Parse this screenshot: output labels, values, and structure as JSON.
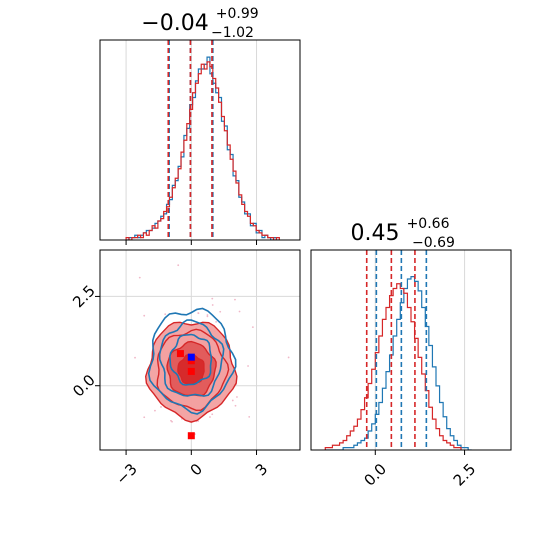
{
  "chart_data": {
    "type": "corner",
    "grid": true,
    "colors": {
      "red": "#d62728",
      "blue": "#1f77b4",
      "red_fill": "#f2a0a0",
      "mid_fill": "#e05858"
    },
    "parameters": [
      {
        "title_value": "−0.04",
        "title_plus": "+0.99",
        "title_minus": "−1.02",
        "range": [
          -4.2,
          5.0
        ]
      },
      {
        "title_value": "0.45",
        "title_plus": "+0.66",
        "title_minus": "−0.69",
        "range": [
          -1.8,
          3.8
        ]
      }
    ],
    "x_ticks": [
      {
        "value": -3,
        "label": "−3"
      },
      {
        "value": 0,
        "label": "0"
      },
      {
        "value": 3,
        "label": "3"
      }
    ],
    "y_ticks": [
      {
        "value": 0.0,
        "label": "0.0"
      },
      {
        "value": 2.5,
        "label": "2.5"
      }
    ],
    "x2_ticks": [
      {
        "value": 0.0,
        "label": "0.0"
      },
      {
        "value": 2.5,
        "label": "2.5"
      }
    ],
    "hist1": {
      "bin_start": -3.0,
      "bin_width": 0.133,
      "red": [
        1,
        0,
        1,
        1,
        2,
        1,
        3,
        2,
        4,
        6,
        5,
        8,
        9,
        12,
        14,
        18,
        22,
        26,
        30,
        37,
        42,
        49,
        55,
        62,
        66,
        70,
        74,
        72,
        75,
        73,
        68,
        64,
        58,
        52,
        46,
        40,
        34,
        29,
        24,
        19,
        15,
        12,
        10,
        7,
        6,
        4,
        3,
        2,
        2,
        1,
        1,
        0,
        1
      ],
      "blue": [
        0,
        1,
        1,
        2,
        1,
        2,
        3,
        4,
        4,
        5,
        7,
        8,
        10,
        11,
        15,
        17,
        23,
        25,
        31,
        35,
        44,
        47,
        57,
        60,
        67,
        72,
        72,
        74,
        77,
        70,
        66,
        62,
        60,
        50,
        48,
        38,
        36,
        27,
        25,
        18,
        16,
        11,
        11,
        6,
        7,
        3,
        4,
        1,
        2,
        1,
        0,
        1,
        0
      ],
      "red_quantiles": [
        -1.06,
        -0.04,
        0.95
      ],
      "blue_quantiles": [
        -1.02,
        -0.04,
        0.99
      ]
    },
    "hist2": {
      "bin_start": -1.4,
      "bin_width": 0.1,
      "red": [
        1,
        1,
        2,
        2,
        3,
        4,
        6,
        8,
        10,
        13,
        17,
        22,
        28,
        34,
        41,
        48,
        55,
        60,
        65,
        68,
        70,
        68,
        66,
        60,
        54,
        47,
        39,
        32,
        25,
        18,
        13,
        9,
        6,
        4,
        3,
        2,
        1,
        1
      ],
      "blue": [
        0,
        0,
        0,
        0,
        0,
        1,
        1,
        1,
        2,
        3,
        4,
        5,
        8,
        11,
        15,
        20,
        26,
        33,
        40,
        48,
        55,
        62,
        68,
        72,
        73,
        71,
        67,
        60,
        52,
        44,
        35,
        27,
        20,
        14,
        9,
        6,
        4,
        2,
        1,
        1,
        0
      ],
      "red_quantiles": [
        -0.24,
        0.45,
        1.11
      ],
      "blue_quantiles": [
        0.03,
        0.73,
        1.43
      ]
    },
    "scatter2d": {
      "red_center": [
        0.0,
        0.45
      ],
      "red_sigma": [
        1.0,
        0.68
      ],
      "blue_center": [
        0.0,
        0.73
      ],
      "blue_sigma": [
        0.95,
        0.7
      ],
      "red_markers": [
        {
          "x": -0.5,
          "y": 0.9
        },
        {
          "x": 0.0,
          "y": 0.7
        },
        {
          "x": 0.0,
          "y": 0.4
        },
        {
          "x": 0.0,
          "y": -1.4
        }
      ],
      "blue_markers": [
        {
          "x": 0.0,
          "y": 0.8
        }
      ]
    }
  }
}
